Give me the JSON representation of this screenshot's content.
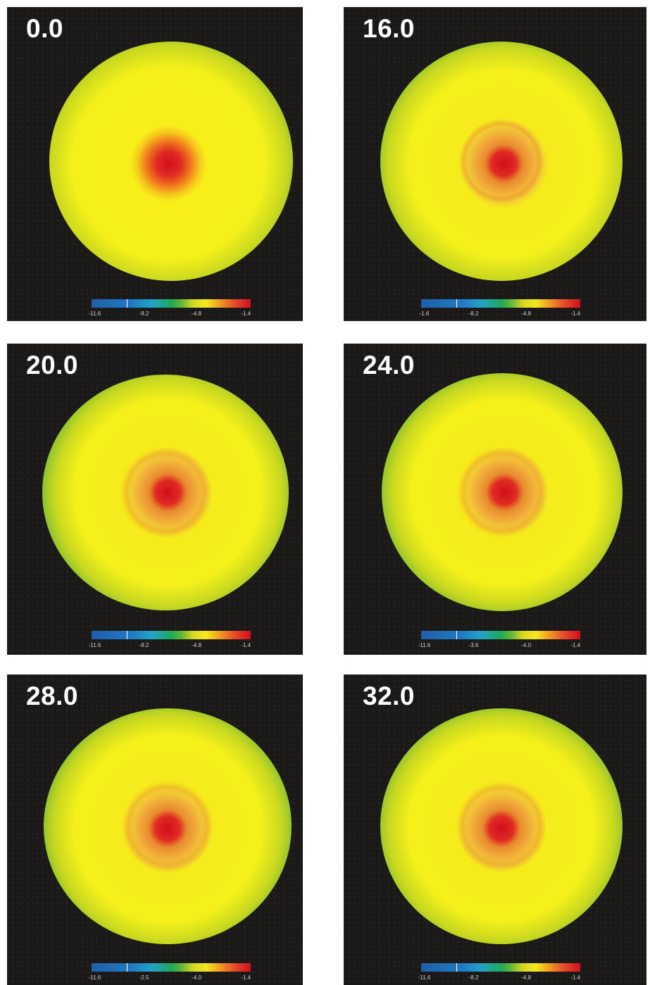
{
  "colorbar_gradient": [
    "#1f5fa8",
    "#22a3c8",
    "#1fa85a",
    "#d6d820",
    "#f4e820",
    "#f0a020",
    "#d01020"
  ],
  "panels": [
    {
      "label": "0.0",
      "ticks": [
        "-11.6",
        "-8.2",
        "-4.8",
        "-1.4"
      ]
    },
    {
      "label": "16.0",
      "ticks": [
        "-1.6",
        "-8.2",
        "-4.8",
        "-1.4"
      ]
    },
    {
      "label": "20.0",
      "ticks": [
        "-11.6",
        "-8.2",
        "-4.8",
        "-1.4"
      ]
    },
    {
      "label": "24.0",
      "ticks": [
        "-11.6",
        "-3.6",
        "-4.0",
        "-1.4"
      ]
    },
    {
      "label": "28.0",
      "ticks": [
        "-11.6",
        "-2.5",
        "-4.0",
        "-1.4"
      ]
    },
    {
      "label": "32.0",
      "ticks": [
        "-11.6",
        "-8.2",
        "-4.8",
        "-1.4"
      ]
    }
  ]
}
